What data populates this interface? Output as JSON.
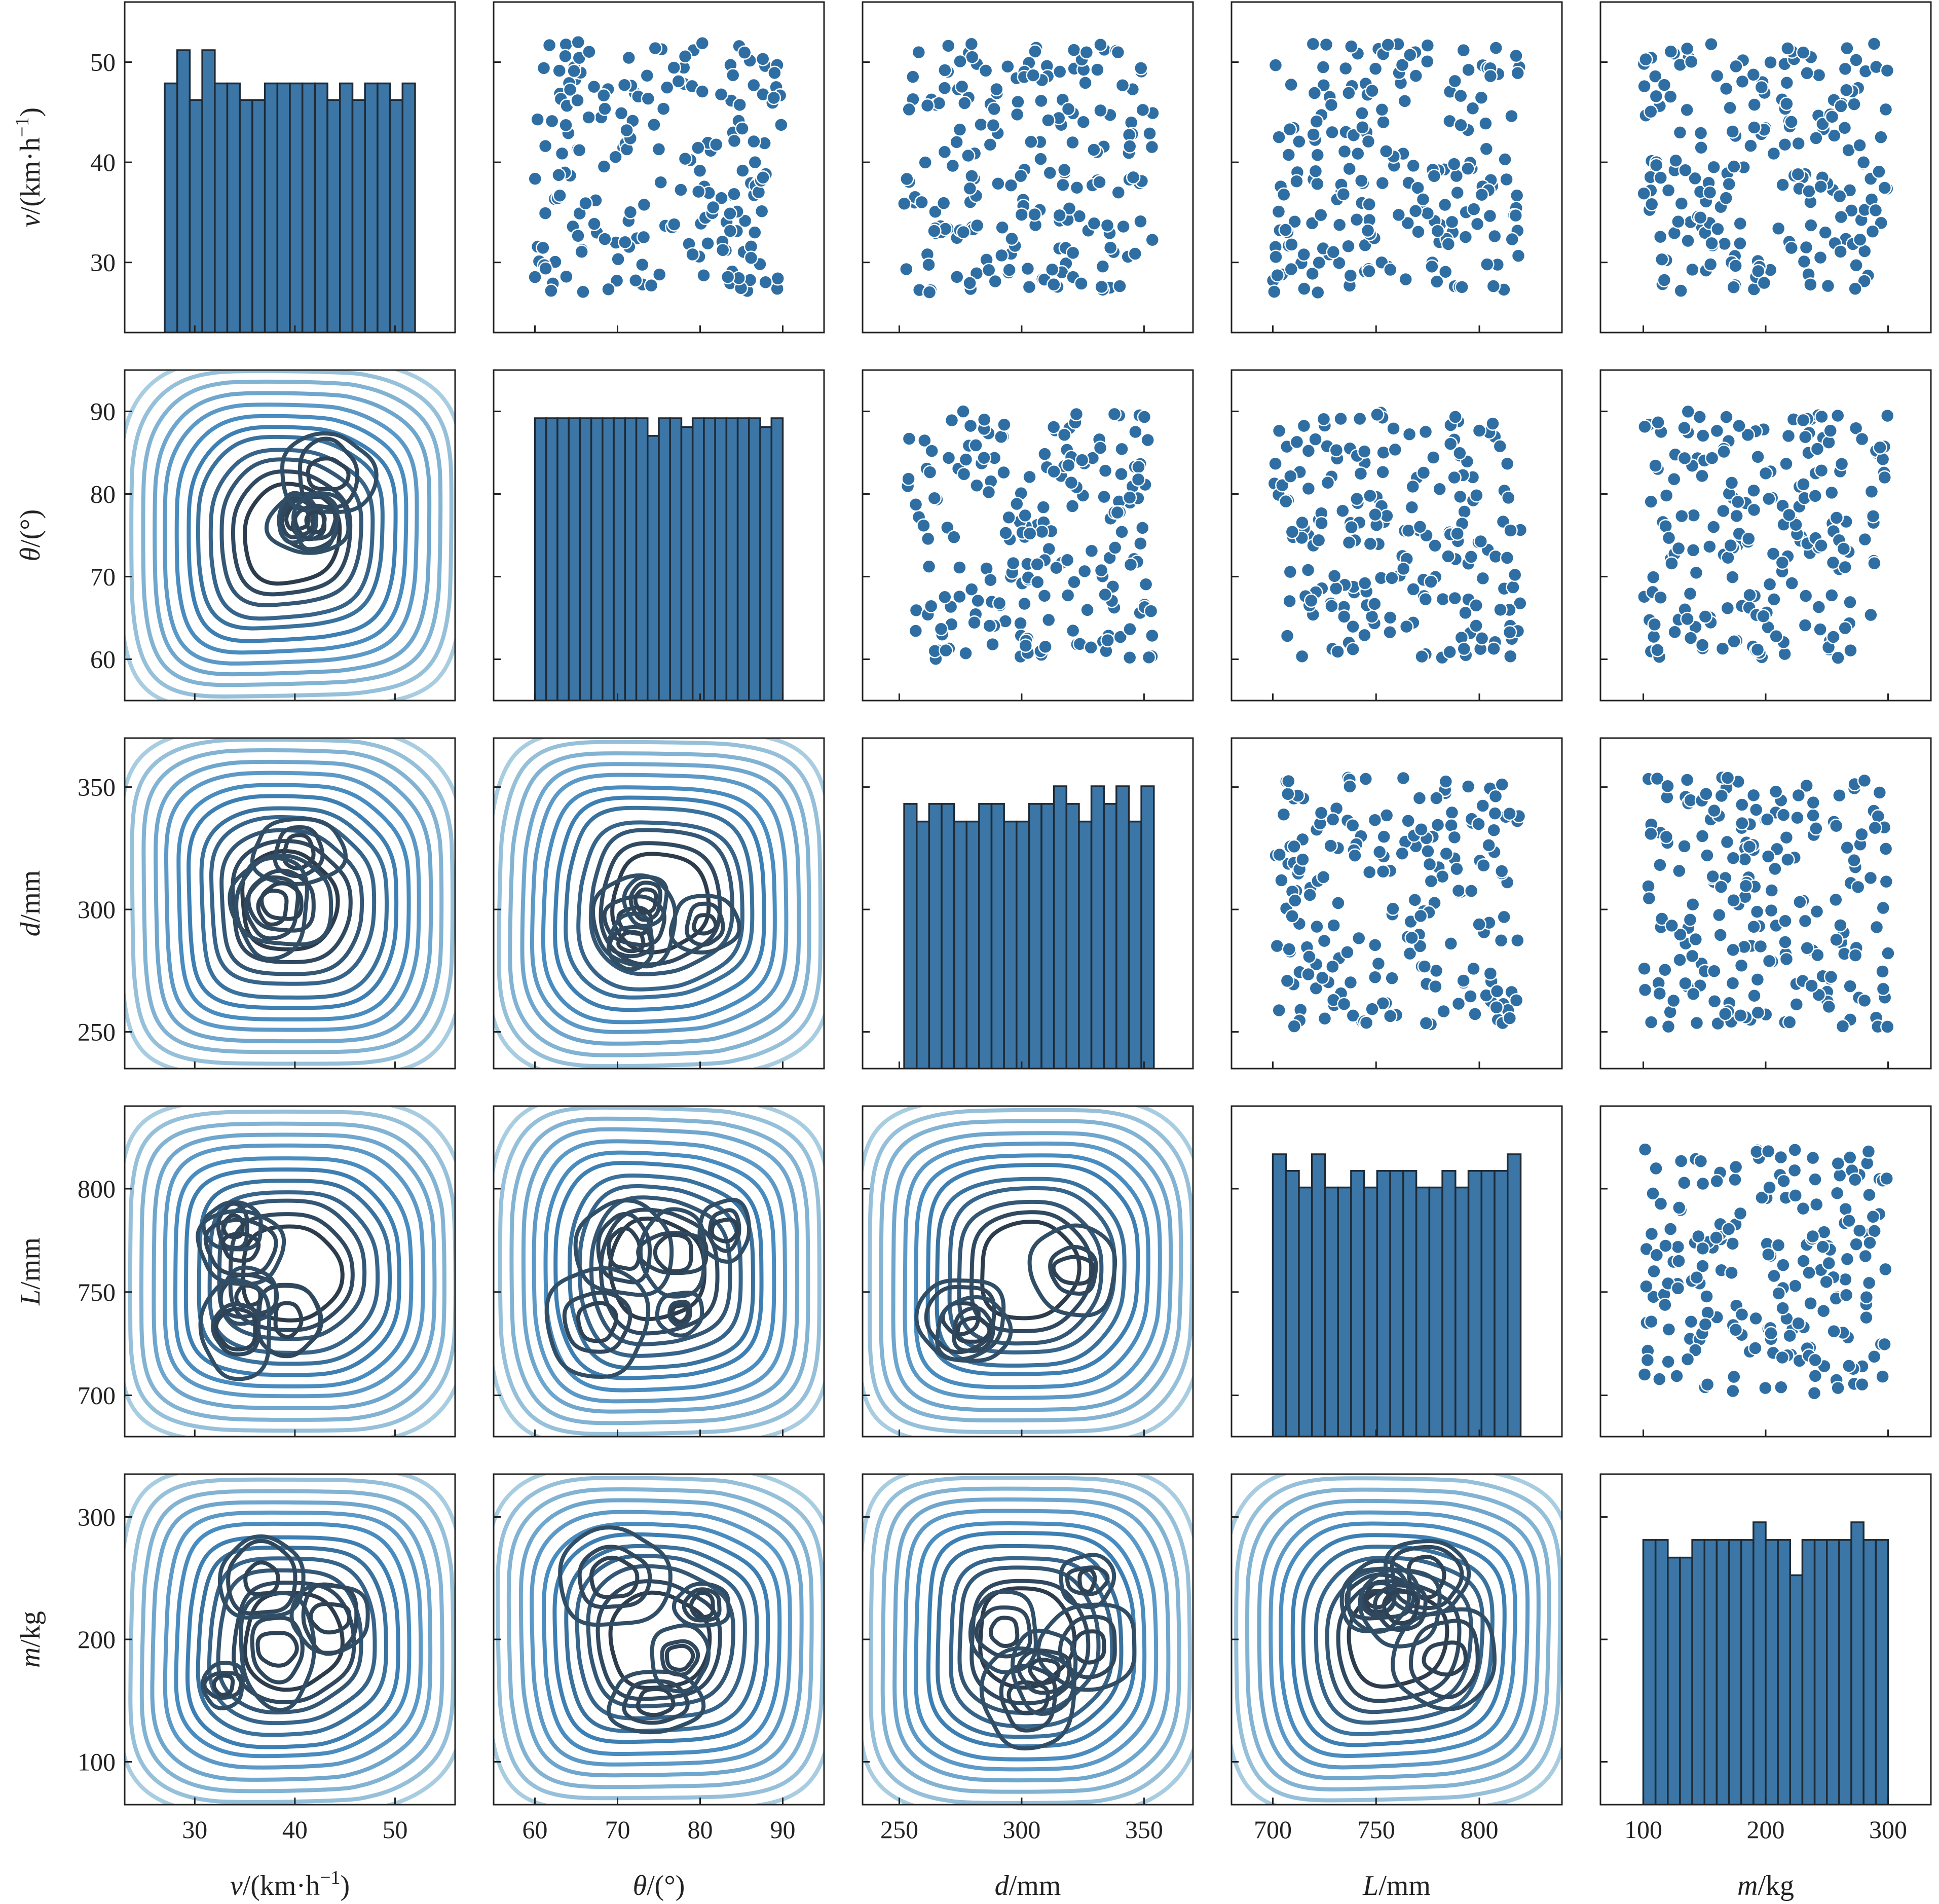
{
  "chart_data": {
    "type": "pairplot",
    "title": "",
    "variables": [
      {
        "key": "v",
        "symbol": "v",
        "unit": "/(km·h",
        "sup": "−1",
        "tail": ")",
        "range": [
          23,
          56
        ],
        "ticks": [
          30,
          40,
          50
        ]
      },
      {
        "key": "theta",
        "symbol": "θ",
        "unit": "/(°)",
        "sup": "",
        "tail": "",
        "range": [
          55,
          95
        ],
        "ticks": [
          60,
          70,
          80,
          90
        ]
      },
      {
        "key": "d",
        "symbol": "d",
        "unit": "/mm",
        "sup": "",
        "tail": "",
        "range": [
          235,
          370
        ],
        "ticks": [
          250,
          300,
          350
        ]
      },
      {
        "key": "L",
        "symbol": "L",
        "unit": "/mm",
        "sup": "",
        "tail": "",
        "range": [
          680,
          840
        ],
        "ticks": [
          700,
          750,
          800
        ]
      },
      {
        "key": "m",
        "symbol": "m",
        "unit": "/kg",
        "sup": "",
        "tail": "",
        "range": [
          65,
          335
        ],
        "ticks": [
          100,
          200,
          300
        ]
      }
    ],
    "tick_labels": {
      "v": [
        "30",
        "40",
        "50"
      ],
      "theta": [
        "60",
        "70",
        "80",
        "90"
      ],
      "d": [
        "250",
        "300",
        "350"
      ],
      "L": [
        "700",
        "750",
        "800"
      ],
      "m": [
        "100",
        "200",
        "300"
      ]
    },
    "diagonal": "histogram",
    "upper": "scatter",
    "lower": "kde",
    "histograms": {
      "v": {
        "edges": [
          27,
          52
        ],
        "counts": [
          15,
          17,
          14,
          17,
          15,
          15,
          14,
          14,
          15,
          15,
          15,
          15,
          15,
          14,
          15,
          14,
          15,
          15,
          14,
          15
        ]
      },
      "theta": {
        "edges": [
          60,
          90
        ],
        "counts": [
          16,
          16,
          16,
          16,
          16,
          16,
          16,
          16,
          16,
          16,
          15,
          16,
          16,
          15.5,
          16,
          16,
          16,
          16,
          16,
          16,
          15.5,
          16
        ]
      },
      "d": {
        "edges": [
          252,
          354
        ],
        "counts": [
          15,
          14,
          15,
          15,
          14,
          14,
          15,
          15,
          14,
          14,
          15,
          15,
          16,
          15,
          14,
          16,
          15,
          16,
          14,
          16
        ]
      },
      "L": {
        "edges": [
          700,
          820
        ],
        "counts": [
          17,
          16,
          15,
          17,
          15,
          15,
          16,
          15,
          16,
          16,
          16,
          15,
          15,
          16,
          15,
          16,
          16,
          16,
          17
        ]
      },
      "m": {
        "edges": [
          100,
          300
        ],
        "counts": [
          15,
          15,
          14,
          14,
          15,
          15,
          15,
          15,
          15,
          16,
          15,
          15,
          13,
          15,
          15,
          15,
          15,
          16,
          15,
          15
        ]
      }
    },
    "scatter_n": 200,
    "colors": {
      "bar": "#3b76a6",
      "point": "#2f6ea3",
      "kde_light": "#a9cde0",
      "kde_mid": "#3f86bd",
      "kde_dark": "#2d3c4c"
    }
  }
}
